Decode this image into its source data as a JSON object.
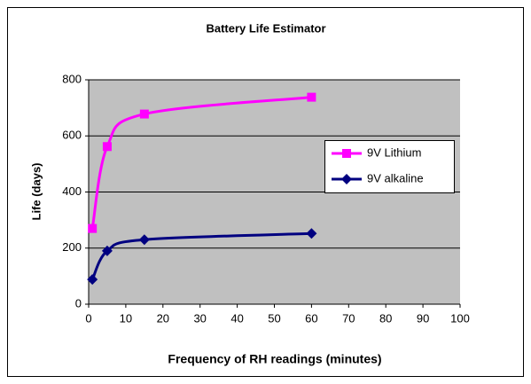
{
  "chart_data": {
    "type": "line",
    "title": "Battery Life Estimator",
    "x_label": "Frequency of RH readings (minutes)",
    "y_label": "Life (days)",
    "x": [
      1,
      5,
      15,
      60
    ],
    "series": [
      {
        "name": "9V Lithium",
        "color": "#ff00ff",
        "marker": "square",
        "values": [
          270,
          562,
          678,
          738
        ]
      },
      {
        "name": "9V alkaline",
        "color": "#000080",
        "marker": "diamond",
        "values": [
          88,
          190,
          230,
          252
        ]
      }
    ],
    "xlim": [
      0,
      100
    ],
    "xticks": [
      0,
      10,
      20,
      30,
      40,
      50,
      60,
      70,
      80,
      90,
      100
    ],
    "ylim": [
      0,
      800
    ],
    "yticks": [
      0,
      200,
      400,
      600,
      800
    ],
    "grid": true,
    "legend": "right",
    "plot_background": "#c0c0c0"
  }
}
